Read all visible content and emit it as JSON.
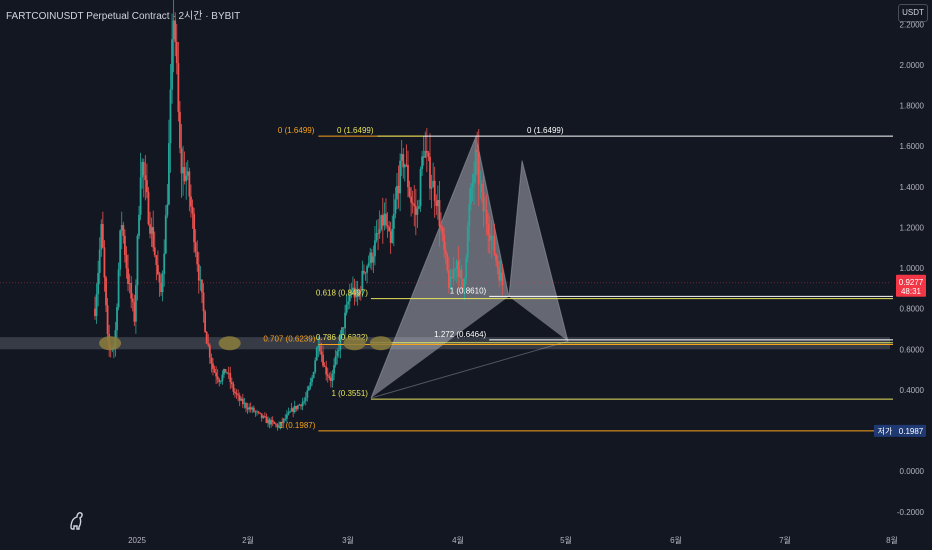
{
  "header": {
    "title": "FARTCOINUSDT Perpetual Contract · 2시간 · BYBIT",
    "currency_label": "USDT"
  },
  "colors": {
    "background": "#131722",
    "candle_up": "#26a69a",
    "candle_down": "#ef5350",
    "fib_orange": "#f7a21b",
    "fib_yellow": "#e6e35c",
    "fib_white": "#ffffff",
    "price_tag": "#f23645",
    "low_tag": "#1f3a73",
    "zone": "#7b7f8a",
    "marker": "#8b7d3c",
    "pattern_fill": "#c9ccd4"
  },
  "logo_icon": "tradingview-dino-icon",
  "chart_data": {
    "type": "candlestick",
    "title": "FARTCOINUSDT Perpetual Contract · 2시간 · BYBIT",
    "ylim": [
      -0.26,
      2.32
    ],
    "y_ticks": [
      "-0.2000",
      "0.0000",
      "0.2000",
      "0.4000",
      "0.6000",
      "0.8000",
      "1.0000",
      "1.2000",
      "1.4000",
      "1.6000",
      "1.8000",
      "2.0000",
      "2.2000"
    ],
    "y_tick_values": [
      -0.2,
      0,
      0.2,
      0.4,
      0.6,
      0.8,
      1.0,
      1.2,
      1.4,
      1.6,
      1.8,
      2.0,
      2.2
    ],
    "x_ticks": [
      "2025",
      "2월",
      "3월",
      "4월",
      "5월",
      "6월",
      "7월",
      "8월"
    ],
    "price_path": [
      [
        0.0,
        0.8
      ],
      [
        0.01,
        1.2
      ],
      [
        0.02,
        0.6
      ],
      [
        0.03,
        0.62
      ],
      [
        0.04,
        1.25
      ],
      [
        0.05,
        0.95
      ],
      [
        0.06,
        0.75
      ],
      [
        0.07,
        1.55
      ],
      [
        0.08,
        1.3
      ],
      [
        0.09,
        1.1
      ],
      [
        0.1,
        0.85
      ],
      [
        0.11,
        1.35
      ],
      [
        0.12,
        2.3
      ],
      [
        0.13,
        1.5
      ],
      [
        0.14,
        1.45
      ],
      [
        0.15,
        1.2
      ],
      [
        0.16,
        0.92
      ],
      [
        0.17,
        0.65
      ],
      [
        0.18,
        0.5
      ],
      [
        0.19,
        0.45
      ],
      [
        0.2,
        0.5
      ],
      [
        0.21,
        0.4
      ],
      [
        0.22,
        0.35
      ],
      [
        0.23,
        0.32
      ],
      [
        0.24,
        0.3
      ],
      [
        0.26,
        0.25
      ],
      [
        0.28,
        0.22
      ],
      [
        0.3,
        0.3
      ],
      [
        0.32,
        0.35
      ],
      [
        0.33,
        0.45
      ],
      [
        0.34,
        0.65
      ],
      [
        0.35,
        0.5
      ],
      [
        0.36,
        0.45
      ],
      [
        0.37,
        0.6
      ],
      [
        0.38,
        0.75
      ],
      [
        0.39,
        0.9
      ],
      [
        0.4,
        0.85
      ],
      [
        0.41,
        1.0
      ],
      [
        0.42,
        1.05
      ],
      [
        0.43,
        1.15
      ],
      [
        0.44,
        1.25
      ],
      [
        0.45,
        1.1
      ],
      [
        0.46,
        1.4
      ],
      [
        0.47,
        1.55
      ],
      [
        0.48,
        1.35
      ],
      [
        0.49,
        1.25
      ],
      [
        0.5,
        1.6
      ],
      [
        0.51,
        1.45
      ],
      [
        0.52,
        1.35
      ],
      [
        0.53,
        1.1
      ],
      [
        0.54,
        0.9
      ],
      [
        0.55,
        1.05
      ],
      [
        0.56,
        0.88
      ],
      [
        0.57,
        1.3
      ],
      [
        0.58,
        1.55
      ],
      [
        0.59,
        1.3
      ],
      [
        0.6,
        1.2
      ],
      [
        0.61,
        1.05
      ],
      [
        0.62,
        0.92
      ]
    ],
    "last_price": "0.9277",
    "countdown": "48:31",
    "low_label": "저가",
    "low_price": "0.1987",
    "support_zone": [
      0.6,
      0.66
    ],
    "zone_markers": [
      {
        "t": 0.023,
        "price": 0.63
      },
      {
        "t": 0.205,
        "price": 0.63
      },
      {
        "t": 0.395,
        "price": 0.63
      },
      {
        "t": 0.435,
        "price": 0.63
      }
    ],
    "fib_levels": [
      {
        "label": "0 (1.6499)",
        "color": "orange",
        "t0": 0.34,
        "t1": 0.5,
        "value": 1.6499,
        "label_anchor": "end"
      },
      {
        "label": "0 (1.6499)",
        "color": "yellow",
        "t0": 0.43,
        "t1": 0.5,
        "value": 1.6499,
        "label_anchor": "end"
      },
      {
        "label": "0 (1.6499)",
        "color": "white",
        "t0": 0.5,
        "t1": 1.0,
        "value": 1.6499,
        "label_anchor": "end-mid"
      },
      {
        "label": "0.618 (0.8497)",
        "color": "yellow",
        "t0": 0.42,
        "t1": 1.0,
        "value": 0.8497,
        "label_anchor": "start"
      },
      {
        "label": "1 (0.8610)",
        "color": "white",
        "t0": 0.6,
        "t1": 1.0,
        "value": 0.861,
        "label_anchor": "start"
      },
      {
        "label": "0.707 (0.6239)",
        "color": "orange",
        "t0": 0.34,
        "t1": 1.0,
        "value": 0.6239,
        "label_anchor": "start"
      },
      {
        "label": "0.786 (0.6322)",
        "color": "yellow",
        "t0": 0.42,
        "t1": 1.0,
        "value": 0.6322,
        "label_anchor": "start"
      },
      {
        "label": "1.272 (0.6464)",
        "color": "white",
        "t0": 0.6,
        "t1": 1.0,
        "value": 0.6464,
        "label_anchor": "start"
      },
      {
        "label": "1 (0.3551)",
        "color": "yellow",
        "t0": 0.42,
        "t1": 1.0,
        "value": 0.3551,
        "label_anchor": "start"
      },
      {
        "label": "1 (0.1987)",
        "color": "orange",
        "t0": 0.34,
        "t1": 1.0,
        "value": 0.1987,
        "label_anchor": "start"
      }
    ],
    "pattern": {
      "points": [
        {
          "t": 0.42,
          "price": 0.36
        },
        {
          "t": 0.58,
          "price": 1.65
        },
        {
          "t": 0.63,
          "price": 0.86
        },
        {
          "t": 0.65,
          "price": 1.53
        },
        {
          "t": 0.72,
          "price": 0.64
        }
      ]
    }
  }
}
